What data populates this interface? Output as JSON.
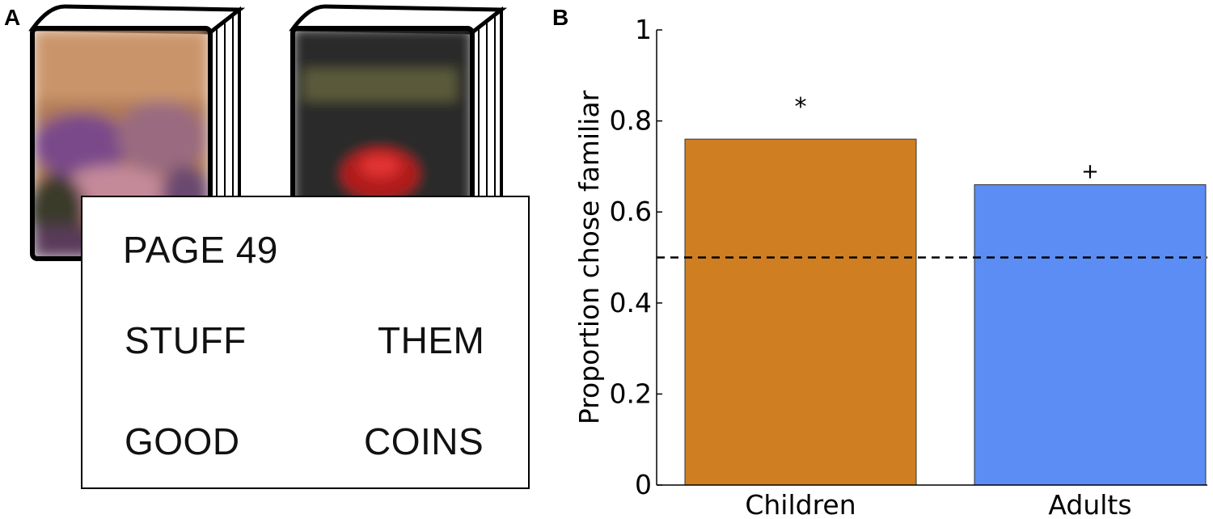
{
  "panels": {
    "a_label": "A",
    "b_label": "B"
  },
  "card": {
    "title": "PAGE 49",
    "words": [
      "STUFF",
      "THEM",
      "GOOD",
      "COINS"
    ]
  },
  "colors": {
    "children_bar": "#cf7f21",
    "adults_bar": "#5b8df5",
    "book_left_tint": "#b07a55",
    "book_right_tint": "#2a2a2a"
  },
  "chart_data": {
    "type": "bar",
    "categories": [
      "Children",
      "Adults"
    ],
    "values": [
      0.76,
      0.66
    ],
    "ylabel": "Proportion chose familiar",
    "xlabel": "",
    "ylim": [
      0,
      1
    ],
    "yticks": [
      "0",
      "0.2",
      "0.4",
      "0.6",
      "0.8",
      "1"
    ],
    "yticks_values": [
      0,
      0.2,
      0.4,
      0.6,
      0.8,
      1
    ],
    "reference_line": 0.5,
    "significance": [
      "*",
      "+"
    ],
    "grid": false
  }
}
